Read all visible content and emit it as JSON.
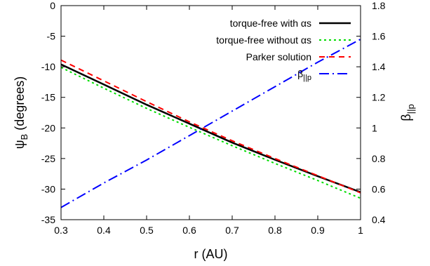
{
  "chart_data": {
    "type": "line",
    "xlabel": "r (AU)",
    "ylabel_main": "ψ",
    "ylabel_sub": "B",
    "ylabel_unit": " (degrees)",
    "y2label_main": "β",
    "y2label_sub": "||p",
    "xlim": [
      0.3,
      1.0
    ],
    "ylim": [
      -35,
      0
    ],
    "y2lim": [
      0.4,
      1.8
    ],
    "xticks": [
      "0.3",
      "0.4",
      "0.5",
      "0.6",
      "0.7",
      "0.8",
      "0.9",
      "1"
    ],
    "yticks": [
      "0",
      "-5",
      "-10",
      "-15",
      "-20",
      "-25",
      "-30",
      "-35"
    ],
    "y2ticks": [
      "1.8",
      "1.6",
      "1.4",
      "1.2",
      "1",
      "0.8",
      "0.6",
      "0.4"
    ],
    "legend_position": "top-right",
    "series": [
      {
        "name": "torque-free with αs",
        "axis": "left",
        "color": "#000000",
        "dash": "",
        "x": [
          0.3,
          0.4,
          0.5,
          0.6,
          0.7,
          0.8,
          0.9,
          1.0
        ],
        "y": [
          -9.6,
          -12.9,
          -16.2,
          -19.3,
          -22.4,
          -25.2,
          -27.9,
          -30.5
        ]
      },
      {
        "name": "torque-free without αs",
        "axis": "left",
        "color": "#00dd00",
        "dash": "3,4",
        "x": [
          0.3,
          0.4,
          0.5,
          0.6,
          0.7,
          0.8,
          0.9,
          1.0
        ],
        "y": [
          -10.1,
          -13.5,
          -16.8,
          -19.9,
          -22.9,
          -25.8,
          -28.6,
          -31.5
        ]
      },
      {
        "name": "Parker solution",
        "axis": "left",
        "color": "#ff0000",
        "dash": "8,6",
        "x": [
          0.3,
          0.4,
          0.5,
          0.6,
          0.7,
          0.8,
          0.9,
          1.0
        ],
        "y": [
          -8.9,
          -12.3,
          -15.7,
          -19.0,
          -22.1,
          -25.0,
          -27.8,
          -30.6
        ]
      },
      {
        "name": "β||p",
        "name_main": "β",
        "name_sub": "||p",
        "axis": "right",
        "color": "#0000ff",
        "dash": "14,5,2,5",
        "x": [
          0.3,
          0.4,
          0.5,
          0.6,
          0.7,
          0.8,
          0.9,
          1.0
        ],
        "y": [
          0.48,
          0.64,
          0.79,
          0.95,
          1.11,
          1.27,
          1.43,
          1.58
        ]
      }
    ]
  }
}
